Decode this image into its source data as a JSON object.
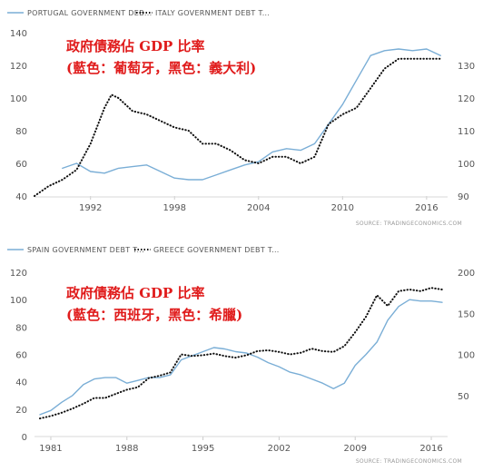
{
  "chart_data": [
    {
      "type": "line",
      "legend": [
        "PORTUGAL GOVERNMENT DEB...",
        "ITALY GOVERNMENT DEBT T..."
      ],
      "annotation_line1": "政府債務佔 GDP 比率",
      "annotation_line2": "(藍色：葡萄牙，黑色：義大利)",
      "source": "SOURCE: TRADINGECONOMICS.COM",
      "x_ticks": [
        "1992",
        "1998",
        "2004",
        "2010",
        "2016"
      ],
      "x_range": [
        1988,
        2017.5
      ],
      "left_axis": {
        "ticks": [
          "40",
          "60",
          "80",
          "100",
          "120",
          "140"
        ],
        "range": [
          40,
          140
        ]
      },
      "right_axis": {
        "ticks": [
          "90",
          "100",
          "110",
          "120",
          "130"
        ],
        "range": [
          90,
          140
        ]
      },
      "grid": false,
      "legend_position": "top-left",
      "series": [
        {
          "name": "PORTUGAL GOVERNMENT DEB...",
          "axis": "left",
          "style": "solid",
          "color": "#7aaed6",
          "points": [
            [
              1990,
              57
            ],
            [
              1991,
              60
            ],
            [
              1992,
              55
            ],
            [
              1993,
              54
            ],
            [
              1994,
              57
            ],
            [
              1995,
              58
            ],
            [
              1996,
              59
            ],
            [
              1997,
              55
            ],
            [
              1998,
              51
            ],
            [
              1999,
              50
            ],
            [
              2000,
              50
            ],
            [
              2001,
              53
            ],
            [
              2002,
              56
            ],
            [
              2003,
              59
            ],
            [
              2004,
              61
            ],
            [
              2005,
              67
            ],
            [
              2006,
              69
            ],
            [
              2007,
              68
            ],
            [
              2008,
              72
            ],
            [
              2009,
              84
            ],
            [
              2010,
              96
            ],
            [
              2011,
              111
            ],
            [
              2012,
              126
            ],
            [
              2013,
              129
            ],
            [
              2014,
              130
            ],
            [
              2015,
              129
            ],
            [
              2016,
              130
            ],
            [
              2017,
              126
            ]
          ]
        },
        {
          "name": "ITALY GOVERNMENT DEBT T...",
          "axis": "right",
          "style": "dotted",
          "color": "#111111",
          "points": [
            [
              1988,
              90
            ],
            [
              1989,
              93
            ],
            [
              1990,
              95
            ],
            [
              1991,
              98
            ],
            [
              1992,
              106
            ],
            [
              1993,
              117
            ],
            [
              1993.5,
              121
            ],
            [
              1994,
              120
            ],
            [
              1995,
              116
            ],
            [
              1996,
              115
            ],
            [
              1997,
              113
            ],
            [
              1998,
              111
            ],
            [
              1999,
              110
            ],
            [
              2000,
              106
            ],
            [
              2001,
              106
            ],
            [
              2002,
              104
            ],
            [
              2003,
              101
            ],
            [
              2004,
              100
            ],
            [
              2005,
              102
            ],
            [
              2006,
              102
            ],
            [
              2007,
              100
            ],
            [
              2008,
              102
            ],
            [
              2009,
              112
            ],
            [
              2010,
              115
            ],
            [
              2011,
              117
            ],
            [
              2012,
              123
            ],
            [
              2013,
              129
            ],
            [
              2014,
              132
            ],
            [
              2015,
              132
            ],
            [
              2016,
              132
            ],
            [
              2017,
              132
            ]
          ]
        }
      ]
    },
    {
      "type": "line",
      "legend": [
        "SPAIN GOVERNMENT DEBT T...",
        "GREECE GOVERNMENT DEBT T..."
      ],
      "annotation_line1": "政府債務佔 GDP 比率",
      "annotation_line2": "(藍色：西班牙，黑色：希臘)",
      "source": "SOURCE: TRADINGECONOMICS.COM",
      "x_ticks": [
        "1981",
        "1988",
        "1995",
        "2002",
        "2009",
        "2016"
      ],
      "x_range": [
        1979.5,
        2017.5
      ],
      "left_axis": {
        "ticks": [
          "0",
          "20",
          "40",
          "60",
          "80",
          "100",
          "120"
        ],
        "range": [
          0,
          120
        ]
      },
      "right_axis": {
        "ticks": [
          "50",
          "100",
          "150",
          "200"
        ],
        "range": [
          0,
          200
        ]
      },
      "grid": false,
      "legend_position": "top-left",
      "series": [
        {
          "name": "SPAIN GOVERNMENT DEBT T...",
          "axis": "left",
          "style": "solid",
          "color": "#7aaed6",
          "points": [
            [
              1980,
              16
            ],
            [
              1981,
              19
            ],
            [
              1982,
              25
            ],
            [
              1983,
              30
            ],
            [
              1984,
              38
            ],
            [
              1985,
              42
            ],
            [
              1986,
              43
            ],
            [
              1987,
              43
            ],
            [
              1988,
              39
            ],
            [
              1989,
              41
            ],
            [
              1990,
              43
            ],
            [
              1991,
              43
            ],
            [
              1992,
              45
            ],
            [
              1993,
              56
            ],
            [
              1994,
              59
            ],
            [
              1995,
              62
            ],
            [
              1996,
              65
            ],
            [
              1997,
              64
            ],
            [
              1998,
              62
            ],
            [
              1999,
              61
            ],
            [
              2000,
              58
            ],
            [
              2001,
              54
            ],
            [
              2002,
              51
            ],
            [
              2003,
              47
            ],
            [
              2004,
              45
            ],
            [
              2005,
              42
            ],
            [
              2006,
              39
            ],
            [
              2007,
              35
            ],
            [
              2008,
              39
            ],
            [
              2009,
              52
            ],
            [
              2010,
              60
            ],
            [
              2011,
              69
            ],
            [
              2012,
              85
            ],
            [
              2013,
              95
            ],
            [
              2014,
              100
            ],
            [
              2015,
              99
            ],
            [
              2016,
              99
            ],
            [
              2017,
              98
            ]
          ]
        },
        {
          "name": "GREECE GOVERNMENT DEBT T...",
          "axis": "right",
          "style": "dotted",
          "color": "#111111",
          "points": [
            [
              1980,
              22
            ],
            [
              1981,
              25
            ],
            [
              1982,
              29
            ],
            [
              1983,
              34
            ],
            [
              1984,
              40
            ],
            [
              1985,
              47
            ],
            [
              1986,
              47
            ],
            [
              1987,
              52
            ],
            [
              1988,
              57
            ],
            [
              1989,
              60
            ],
            [
              1990,
              71
            ],
            [
              1991,
              74
            ],
            [
              1992,
              78
            ],
            [
              1993,
              100
            ],
            [
              1994,
              98
            ],
            [
              1995,
              99
            ],
            [
              1996,
              101
            ],
            [
              1997,
              98
            ],
            [
              1998,
              96
            ],
            [
              1999,
              99
            ],
            [
              2000,
              104
            ],
            [
              2001,
              105
            ],
            [
              2002,
              103
            ],
            [
              2003,
              100
            ],
            [
              2004,
              102
            ],
            [
              2005,
              107
            ],
            [
              2006,
              104
            ],
            [
              2007,
              103
            ],
            [
              2008,
              110
            ],
            [
              2009,
              127
            ],
            [
              2010,
              146
            ],
            [
              2011,
              172
            ],
            [
              2012,
              159
            ],
            [
              2013,
              177
            ],
            [
              2014,
              179
            ],
            [
              2015,
              177
            ],
            [
              2016,
              181
            ],
            [
              2017,
              179
            ]
          ]
        }
      ]
    }
  ]
}
